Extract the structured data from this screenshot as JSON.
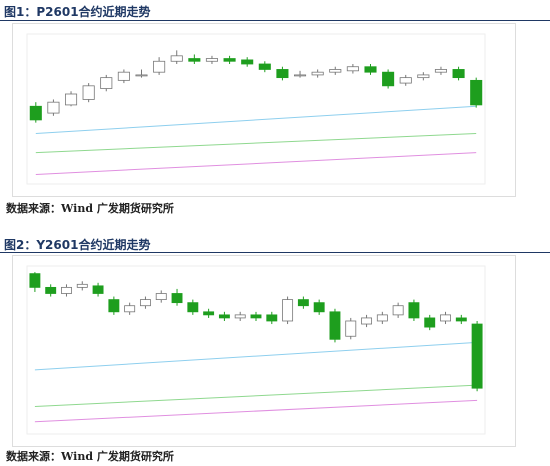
{
  "figures": [
    {
      "caption": "图1：P2601合约近期走势",
      "source": "数据来源：Wind 广发期货研究所",
      "chart": {
        "type": "candlestick",
        "ylim": [
          0,
          110
        ],
        "up_color": "#ffffff",
        "down_color": "#1e9e1e",
        "open": [
          57,
          52,
          58,
          62,
          70,
          76,
          80,
          82,
          90,
          92,
          90,
          92,
          91,
          88,
          84,
          80,
          80,
          82,
          83,
          86,
          82,
          74,
          78,
          82,
          84,
          76
        ],
        "close": [
          47,
          60,
          66,
          72,
          78,
          82,
          80,
          90,
          94,
          90,
          92,
          90,
          88,
          84,
          78,
          80,
          82,
          84,
          86,
          82,
          72,
          78,
          80,
          84,
          78,
          58
        ],
        "high": [
          60,
          62,
          68,
          74,
          80,
          84,
          84,
          93,
          98,
          95,
          94,
          94,
          93,
          90,
          86,
          83,
          84,
          86,
          88,
          88,
          84,
          80,
          82,
          86,
          86,
          78
        ],
        "low": [
          45,
          50,
          57,
          60,
          68,
          74,
          78,
          80,
          88,
          88,
          88,
          88,
          86,
          82,
          76,
          78,
          78,
          80,
          81,
          80,
          70,
          72,
          76,
          80,
          76,
          56
        ],
        "lines": [
          {
            "color": "#8ecfee",
            "values": [
              37,
              57
            ]
          },
          {
            "color": "#8fd88f",
            "values": [
              23,
              37
            ]
          },
          {
            "color": "#e08fe0",
            "values": [
              7,
              23
            ]
          }
        ]
      }
    },
    {
      "caption": "图2：Y2601合约近期走势",
      "source": "数据来源：Wind 广发期货研究所",
      "chart": {
        "type": "candlestick",
        "ylim": [
          0,
          110
        ],
        "up_color": "#ffffff",
        "down_color": "#1e9e1e",
        "open": [
          105,
          96,
          92,
          96,
          97,
          88,
          80,
          84,
          88,
          92,
          86,
          80,
          78,
          76,
          78,
          78,
          74,
          88,
          86,
          80,
          64,
          72,
          74,
          78,
          86,
          76,
          74,
          76,
          72
        ],
        "close": [
          96,
          92,
          96,
          98,
          92,
          80,
          84,
          88,
          92,
          86,
          80,
          78,
          76,
          78,
          76,
          74,
          88,
          84,
          80,
          62,
          74,
          76,
          78,
          84,
          76,
          70,
          78,
          74,
          30
        ],
        "high": [
          106,
          98,
          98,
          100,
          99,
          90,
          86,
          90,
          94,
          95,
          88,
          82,
          80,
          80,
          80,
          80,
          90,
          90,
          88,
          82,
          76,
          78,
          80,
          86,
          88,
          78,
          80,
          78,
          74
        ],
        "low": [
          93,
          90,
          90,
          94,
          90,
          78,
          78,
          82,
          86,
          84,
          78,
          76,
          74,
          74,
          74,
          72,
          72,
          82,
          78,
          60,
          62,
          70,
          72,
          76,
          74,
          68,
          72,
          72,
          28
        ],
        "lines": [
          {
            "color": "#8ecfee",
            "values": [
              42,
              60
            ]
          },
          {
            "color": "#8fd88f",
            "values": [
              18,
              32
            ]
          },
          {
            "color": "#e08fe0",
            "values": [
              8,
              22
            ]
          }
        ]
      }
    }
  ]
}
